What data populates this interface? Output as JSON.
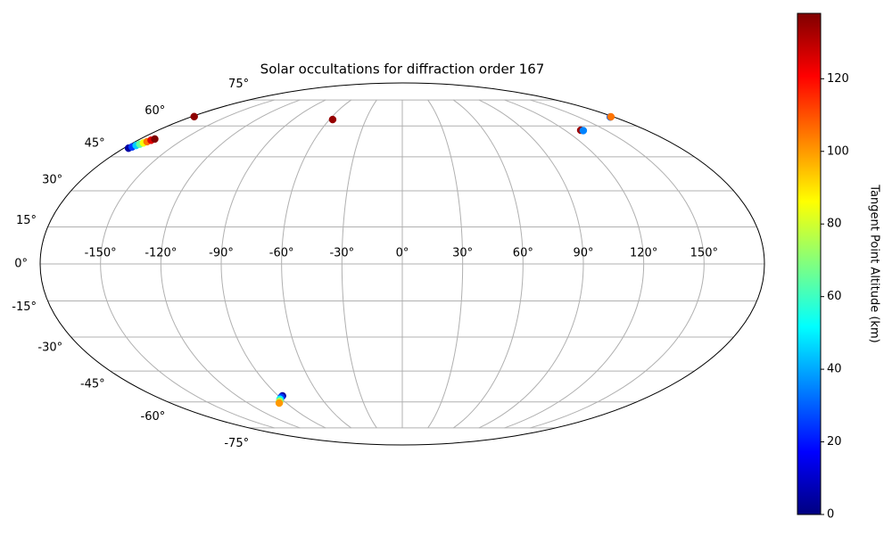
{
  "chart_data": {
    "type": "scatter",
    "projection": "mollweide",
    "title": "Solar occultations for diffraction order 167",
    "x": [
      -177,
      -176,
      -175,
      -174,
      -173,
      -172,
      -171,
      -170,
      -178,
      -57.4,
      131.6,
      133,
      177,
      178,
      -87,
      -89,
      -91.5,
      -93.5,
      -95.6
    ],
    "y": [
      49,
      49.6,
      50.3,
      50.9,
      51.5,
      52.1,
      52.8,
      53.4,
      65,
      63.4,
      57.8,
      57.6,
      64.8,
      64.9,
      -56.9,
      -57.6,
      -58.6,
      -59.6,
      -60.6
    ],
    "values": [
      5,
      25,
      45,
      65,
      85,
      105,
      125,
      138,
      136,
      135,
      134,
      35,
      30,
      105,
      5,
      25,
      50,
      75,
      100
    ],
    "xticks": [
      {
        "value": -150,
        "label": "-150°"
      },
      {
        "value": -120,
        "label": "-120°"
      },
      {
        "value": -90,
        "label": "-90°"
      },
      {
        "value": -60,
        "label": "-60°"
      },
      {
        "value": -30,
        "label": "-30°"
      },
      {
        "value": 0,
        "label": "0°"
      },
      {
        "value": 30,
        "label": "30°"
      },
      {
        "value": 60,
        "label": "60°"
      },
      {
        "value": 90,
        "label": "90°"
      },
      {
        "value": 120,
        "label": "120°"
      },
      {
        "value": 150,
        "label": "150°"
      }
    ],
    "yticks": [
      {
        "value": -75,
        "label": "-75°"
      },
      {
        "value": -60,
        "label": "-60°"
      },
      {
        "value": -45,
        "label": "-45°"
      },
      {
        "value": -30,
        "label": "-30°"
      },
      {
        "value": -15,
        "label": "-15°"
      },
      {
        "value": 0,
        "label": "0°"
      },
      {
        "value": 15,
        "label": "15°"
      },
      {
        "value": 30,
        "label": "30°"
      },
      {
        "value": 45,
        "label": "45°"
      },
      {
        "value": 60,
        "label": "60°"
      },
      {
        "value": 75,
        "label": "75°"
      }
    ],
    "grid": true,
    "colormap": "jet",
    "clim": [
      0,
      138
    ],
    "cticks": [
      0,
      20,
      40,
      60,
      80,
      100,
      120
    ],
    "clabel": "Tangent Point Altitude (km)"
  }
}
